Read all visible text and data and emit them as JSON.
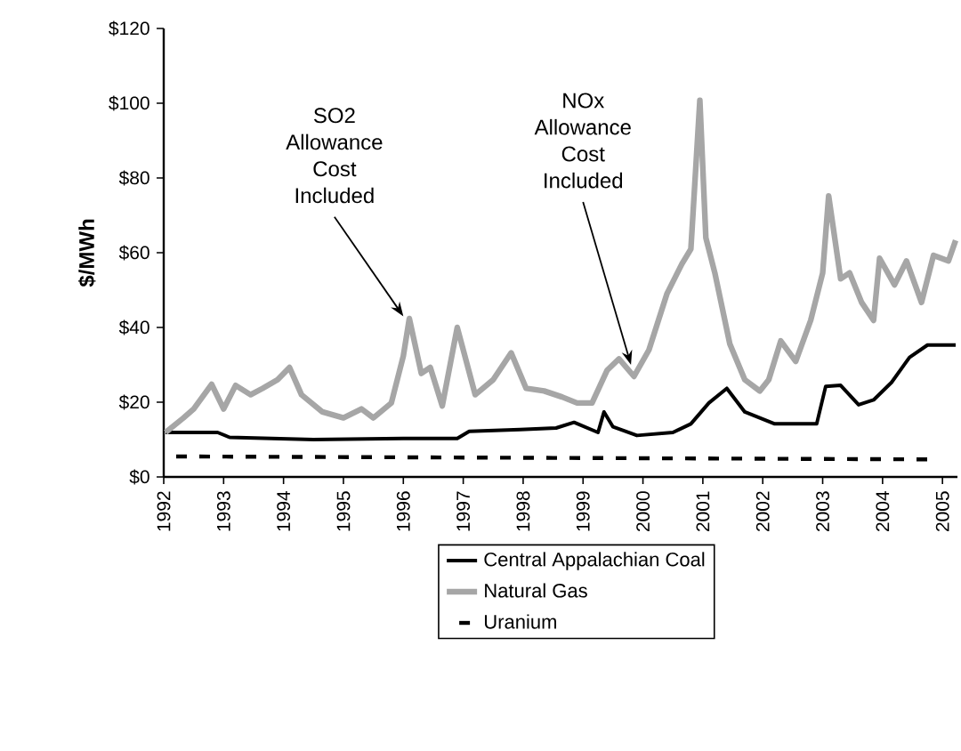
{
  "chart_data": {
    "type": "line",
    "ylabel": "$/MWh",
    "xlim": [
      1992,
      2005.25
    ],
    "xticks": [
      1992,
      1993,
      1994,
      1995,
      1996,
      1997,
      1998,
      1999,
      2000,
      2001,
      2002,
      2003,
      2004,
      2005
    ],
    "ylim": [
      0,
      120
    ],
    "yticks": [
      {
        "value": 0,
        "label": "$0"
      },
      {
        "value": 20,
        "label": "$20"
      },
      {
        "value": 40,
        "label": "$40"
      },
      {
        "value": 60,
        "label": "$60"
      },
      {
        "value": 80,
        "label": "$80"
      },
      {
        "value": 100,
        "label": "$100"
      },
      {
        "value": 120,
        "label": "$120"
      }
    ],
    "legend": "bottom",
    "grid": false,
    "marker": "none",
    "series": [
      {
        "name": "Central Appalachian Coal",
        "color": "#000000",
        "line_style": "solid",
        "x": [
          1992.03,
          1992.9,
          1993.1,
          1994.5,
          1996.0,
          1996.9,
          1997.1,
          1997.95,
          1998.55,
          1998.85,
          1999.25,
          1999.35,
          1999.5,
          1999.9,
          2000.5,
          2000.8,
          2001.1,
          2001.4,
          2001.7,
          2002.2,
          2002.9,
          2003.05,
          2003.3,
          2003.6,
          2003.85,
          2004.15,
          2004.45,
          2004.75,
          2005.22
        ],
        "values": [
          11.9,
          11.9,
          10.6,
          10,
          10.3,
          10.3,
          12.2,
          12.7,
          13.1,
          14.6,
          11.9,
          17.4,
          13.4,
          11.1,
          11.9,
          14.2,
          19.8,
          23.7,
          17.4,
          14.2,
          14.2,
          24.2,
          24.5,
          19.3,
          20.6,
          25.3,
          32,
          35.3,
          35.3
        ]
      },
      {
        "name": "Natural Gas",
        "color": "#a6a6a6",
        "line_style": "solid",
        "x": [
          1992.03,
          1992.33,
          1992.5,
          1992.8,
          1993.0,
          1993.2,
          1993.45,
          1993.65,
          1993.9,
          1994.1,
          1994.3,
          1994.65,
          1995.0,
          1995.3,
          1995.5,
          1995.8,
          1996.0,
          1996.1,
          1996.3,
          1996.45,
          1996.65,
          1996.9,
          1997.2,
          1997.5,
          1997.8,
          1998.05,
          1998.35,
          1998.65,
          1998.9,
          1999.15,
          1999.4,
          1999.6,
          1999.85,
          2000.1,
          2000.4,
          2000.65,
          2000.8,
          2000.95,
          2001.05,
          2001.2,
          2001.45,
          2001.7,
          2001.95,
          2002.1,
          2002.3,
          2002.55,
          2002.8,
          2003.0,
          2003.1,
          2003.3,
          2003.45,
          2003.65,
          2003.85,
          2003.95,
          2004.2,
          2004.4,
          2004.65,
          2004.85,
          2005.1,
          2005.22
        ],
        "values": [
          11.9,
          15.8,
          18.2,
          24.8,
          18.2,
          24.5,
          22,
          23.7,
          26,
          29.3,
          22,
          17.4,
          15.8,
          18.2,
          15.8,
          19.8,
          32.4,
          42.4,
          27.7,
          29.3,
          19,
          40,
          22,
          26,
          33.2,
          23.7,
          23,
          21.4,
          19.8,
          19.8,
          28.5,
          31.6,
          26.9,
          34,
          49,
          57,
          61,
          100.8,
          64,
          54.6,
          35.6,
          26,
          23,
          26,
          36.4,
          30.9,
          41.9,
          54.6,
          75.2,
          53,
          54.6,
          46.7,
          41.9,
          58.5,
          51.4,
          57.8,
          46.7,
          59.3,
          57.8,
          63.3
        ]
      },
      {
        "name": "Uranium",
        "color": "#000000",
        "line_style": "dashed",
        "x": [
          1992.0,
          1998.5,
          2004.75
        ],
        "values": [
          5.5,
          5.1,
          4.7
        ]
      }
    ],
    "annotations": [
      {
        "text": "SO2 Allowance Cost Included",
        "x": 1996.0,
        "y": 42
      },
      {
        "text": "NOx Allowance Cost Included",
        "x": 1999.8,
        "y": 29
      }
    ]
  }
}
